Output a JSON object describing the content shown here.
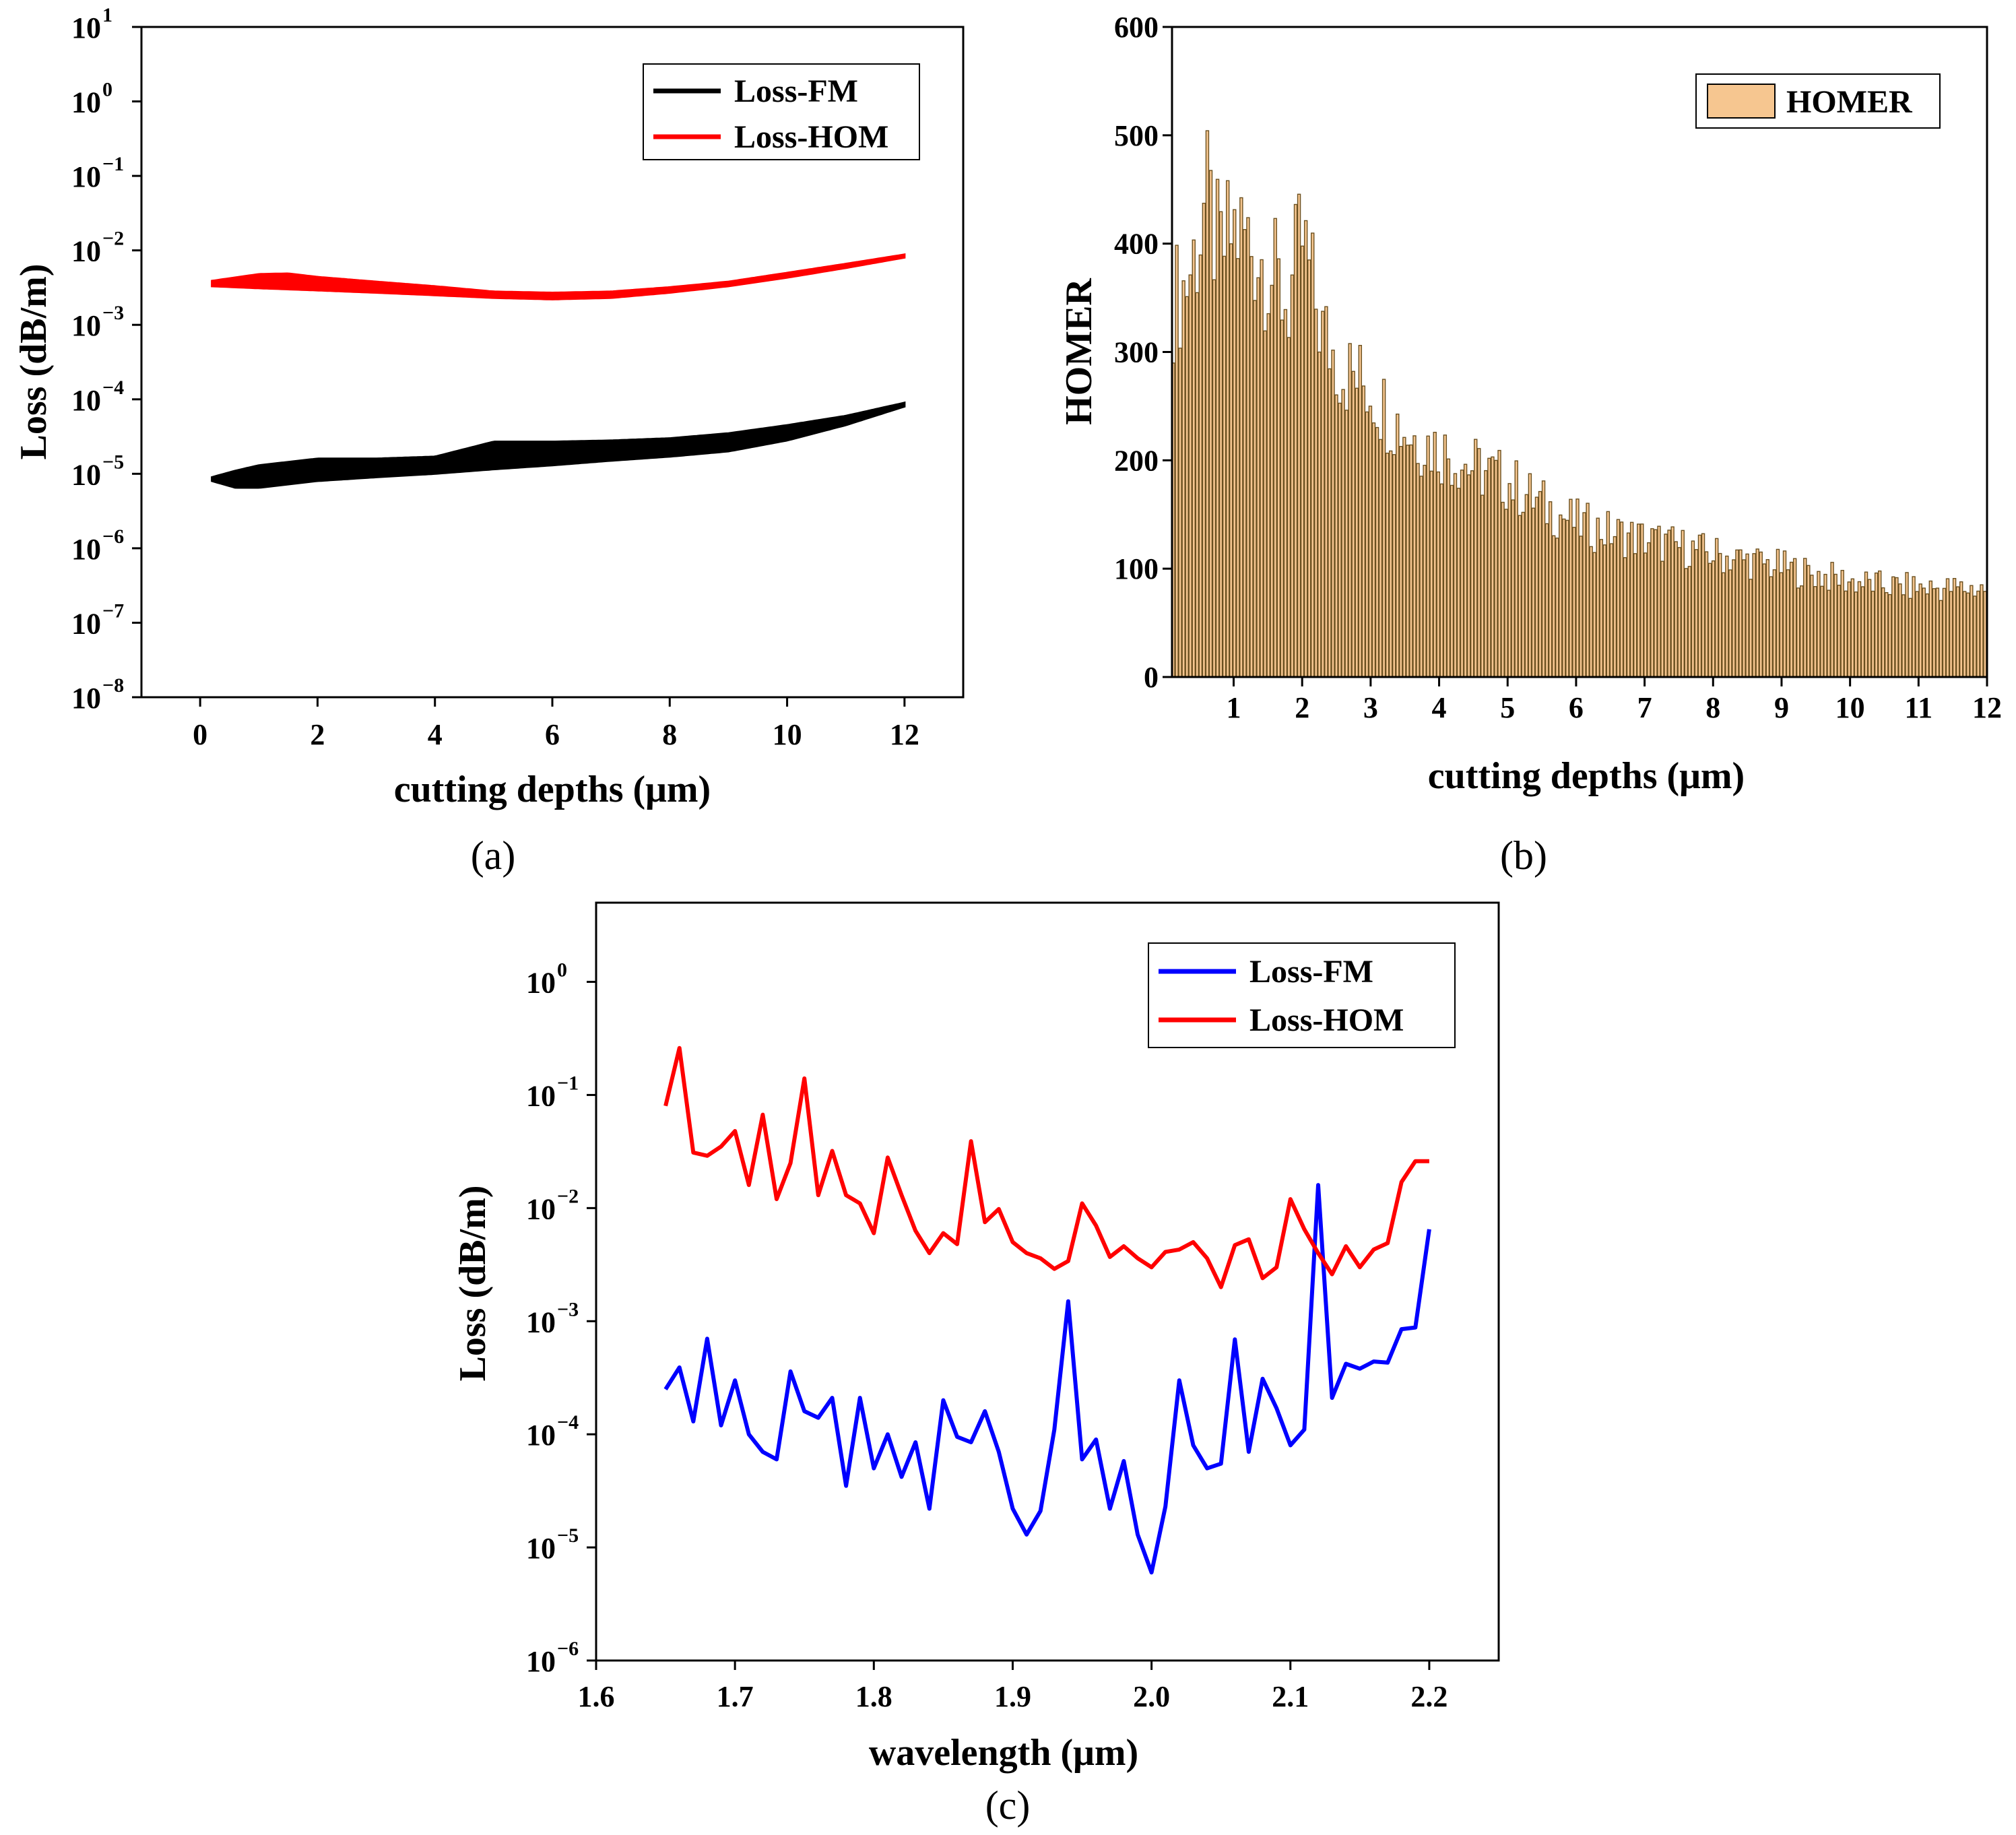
{
  "chart_data": [
    {
      "id": "a",
      "panel_label": "(a)",
      "type": "area",
      "xlabel": "cutting depths (μm)",
      "ylabel": "Loss (dB/m)",
      "xlim": [
        -1,
        13
      ],
      "xticks": [
        0,
        2,
        4,
        6,
        8,
        10,
        12
      ],
      "xtick_labels": [
        "0",
        "2",
        "4",
        "6",
        "8",
        "10",
        "12"
      ],
      "yscale": "log",
      "ylim_exp": [
        -8,
        1
      ],
      "yticks": [
        {
          "base": "10",
          "exp": "1"
        },
        {
          "base": "10",
          "exp": "0"
        },
        {
          "base": "10",
          "exp": "−1"
        },
        {
          "base": "10",
          "exp": "−2"
        },
        {
          "base": "10",
          "exp": "−3"
        },
        {
          "base": "10",
          "exp": "−4"
        },
        {
          "base": "10",
          "exp": "−5"
        },
        {
          "base": "10",
          "exp": "−6"
        },
        {
          "base": "10",
          "exp": "−7"
        },
        {
          "base": "10",
          "exp": "−8"
        }
      ],
      "legend_position": "top-right",
      "series": [
        {
          "name": "Loss-FM",
          "color": "#000000",
          "x": [
            0.2,
            0.6,
            1.0,
            2.0,
            3.0,
            4.0,
            5.0,
            6.0,
            7.0,
            8.0,
            9.0,
            10.0,
            11.0,
            12.0
          ],
          "lower": [
            8e-06,
            6.5e-06,
            6.5e-06,
            8e-06,
            9e-06,
            1e-05,
            1.15e-05,
            1.3e-05,
            1.5e-05,
            1.7e-05,
            2e-05,
            2.8e-05,
            4.5e-05,
            8e-05
          ],
          "upper": [
            9e-06,
            1.1e-05,
            1.3e-05,
            1.6e-05,
            1.6e-05,
            1.7e-05,
            2.7e-05,
            2.7e-05,
            2.8e-05,
            3e-05,
            3.5e-05,
            4.5e-05,
            6e-05,
            9e-05
          ]
        },
        {
          "name": "Loss-HOM",
          "color": "#ff0000",
          "x": [
            0.2,
            1.0,
            1.5,
            2.0,
            3.0,
            4.0,
            5.0,
            6.0,
            7.0,
            8.0,
            9.0,
            10.0,
            11.0,
            12.0
          ],
          "lower": [
            0.0033,
            0.0031,
            0.003,
            0.0029,
            0.0027,
            0.0025,
            0.0023,
            0.0022,
            0.0023,
            0.0027,
            0.0033,
            0.0043,
            0.0058,
            0.008
          ],
          "upper": [
            0.0039,
            0.0048,
            0.0049,
            0.0044,
            0.0038,
            0.0033,
            0.0028,
            0.0027,
            0.0028,
            0.0032,
            0.0038,
            0.005,
            0.0066,
            0.0088
          ]
        }
      ]
    },
    {
      "id": "b",
      "panel_label": "(b)",
      "type": "bar",
      "xlabel": "cutting depths (μm)",
      "ylabel": "HOMER",
      "xlim": [
        0.1,
        12
      ],
      "xticks": [
        1,
        2,
        3,
        4,
        5,
        6,
        7,
        8,
        9,
        10,
        11,
        12
      ],
      "xtick_labels": [
        "1",
        "2",
        "3",
        "4",
        "5",
        "6",
        "7",
        "8",
        "9",
        "10",
        "11",
        "12"
      ],
      "ylim": [
        0,
        600
      ],
      "yticks": [
        0,
        100,
        200,
        300,
        400,
        500,
        600
      ],
      "ytick_labels": [
        "0",
        "100",
        "200",
        "300",
        "400",
        "500",
        "600"
      ],
      "legend_position": "top-right",
      "series": [
        {
          "name": "HOMER",
          "color": "#f6c690",
          "edge_color": "#6b5020",
          "envelope_x": [
            0.1,
            0.3,
            0.5,
            0.6,
            0.8,
            1.0,
            1.2,
            1.5,
            1.8,
            2.0,
            2.3,
            2.6,
            3.0,
            3.3,
            3.6,
            4.0,
            4.5,
            5.0,
            5.5,
            6.0,
            6.5,
            7.0,
            7.5,
            8.0,
            8.5,
            9.0,
            9.5,
            10.0,
            10.5,
            11.0,
            11.5,
            12.0
          ],
          "envelope_y": [
            400,
            420,
            470,
            515,
            450,
            480,
            470,
            440,
            400,
            470,
            370,
            330,
            310,
            280,
            260,
            245,
            225,
            210,
            185,
            165,
            155,
            148,
            140,
            132,
            125,
            118,
            110,
            103,
            98,
            96,
            95,
            95
          ]
        }
      ]
    },
    {
      "id": "c",
      "panel_label": "(c)",
      "type": "line",
      "xlabel": "wavelength (μm)",
      "ylabel": "Loss (dB/m)",
      "xlim": [
        1.6,
        2.25
      ],
      "xticks": [
        1.6,
        1.7,
        1.8,
        1.9,
        2.0,
        2.1,
        2.2
      ],
      "xtick_labels": [
        "1.6",
        "1.7",
        "1.8",
        "1.9",
        "2.0",
        "2.1",
        "2.2"
      ],
      "yscale": "log",
      "ylim_exp": [
        -6,
        0.7
      ],
      "yticks": [
        {
          "base": "10",
          "exp": "0"
        },
        {
          "base": "10",
          "exp": "−1"
        },
        {
          "base": "10",
          "exp": "−2"
        },
        {
          "base": "10",
          "exp": "−3"
        },
        {
          "base": "10",
          "exp": "−4"
        },
        {
          "base": "10",
          "exp": "−5"
        },
        {
          "base": "10",
          "exp": "−6"
        }
      ],
      "legend_position": "top-right",
      "x": [
        1.65,
        1.66,
        1.67,
        1.68,
        1.69,
        1.7,
        1.71,
        1.72,
        1.73,
        1.74,
        1.75,
        1.76,
        1.77,
        1.78,
        1.79,
        1.8,
        1.81,
        1.82,
        1.83,
        1.84,
        1.85,
        1.86,
        1.87,
        1.88,
        1.89,
        1.9,
        1.91,
        1.92,
        1.93,
        1.94,
        1.95,
        1.96,
        1.97,
        1.98,
        1.99,
        2.0,
        2.01,
        2.02,
        2.03,
        2.04,
        2.05,
        2.06,
        2.07,
        2.08,
        2.09,
        2.1,
        2.11,
        2.12,
        2.13,
        2.14,
        2.15,
        2.16,
        2.17,
        2.18,
        2.19,
        2.2
      ],
      "series": [
        {
          "name": "Loss-FM",
          "color": "#0000ff",
          "values": [
            0.00025,
            0.00039,
            0.00013,
            0.0007,
            0.00012,
            0.0003,
            0.0001,
            7e-05,
            6e-05,
            0.00036,
            0.00016,
            0.00014,
            0.00021,
            3.5e-05,
            0.00021,
            5e-05,
            0.0001,
            4.2e-05,
            8.5e-05,
            2.2e-05,
            0.0002,
            9.5e-05,
            8.5e-05,
            0.00016,
            7e-05,
            2.2e-05,
            1.3e-05,
            2.1e-05,
            0.00011,
            0.0015,
            6e-05,
            9e-05,
            2.2e-05,
            5.8e-05,
            1.3e-05,
            6e-06,
            2.3e-05,
            0.0003,
            8e-05,
            5e-05,
            5.5e-05,
            0.00069,
            7e-05,
            0.00031,
            0.00017,
            8e-05,
            0.00011,
            0.016,
            0.00021,
            0.00042,
            0.00038,
            0.00044,
            0.00043,
            0.00085,
            0.00088,
            0.0065
          ]
        },
        {
          "name": "Loss-HOM",
          "color": "#ff0000",
          "values": [
            0.08,
            0.26,
            0.031,
            0.029,
            0.035,
            0.048,
            0.016,
            0.067,
            0.012,
            0.025,
            0.14,
            0.013,
            0.032,
            0.013,
            0.011,
            0.006,
            0.028,
            0.013,
            0.0063,
            0.004,
            0.006,
            0.0048,
            0.039,
            0.0075,
            0.0098,
            0.005,
            0.004,
            0.0036,
            0.0029,
            0.0034,
            0.011,
            0.007,
            0.0037,
            0.0046,
            0.0036,
            0.003,
            0.0041,
            0.0043,
            0.005,
            0.0036,
            0.002,
            0.0047,
            0.0053,
            0.0024,
            0.003,
            0.012,
            0.0065,
            0.004,
            0.0026,
            0.0046,
            0.003,
            0.0043,
            0.0049,
            0.017,
            0.026,
            0.026
          ]
        }
      ]
    }
  ]
}
